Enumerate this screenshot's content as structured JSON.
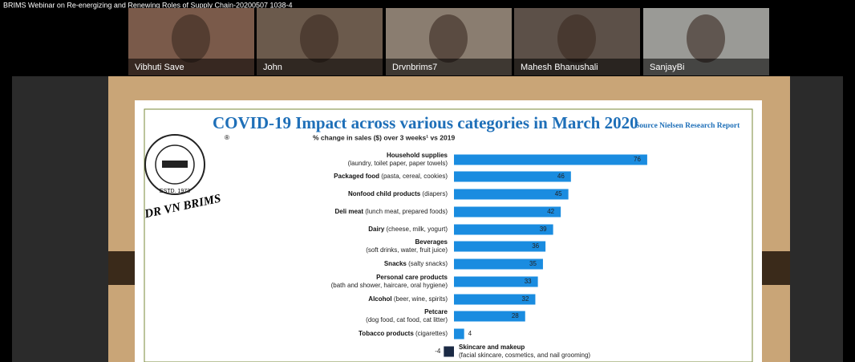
{
  "window_title": "BRIMS Webinar on Re-energizing and Renewing Roles of Supply Chain-20200507 1038-4",
  "participants": [
    "Vibhuti Save",
    "John",
    "Drvnbrims7",
    "Mahesh Bhanushali",
    "SanjayBi"
  ],
  "logo": {
    "name": "DR VN BRIMS",
    "estd": "ESTD. 1973"
  },
  "chart_data": {
    "type": "bar",
    "orientation": "horizontal",
    "title": "COVID-19 Impact across various categories in March 2020",
    "source": "Source Nielsen Research Report",
    "subtitle": "% change in sales ($) over 3 weeks¹ vs 2019",
    "categories": [
      {
        "name": "Household supplies",
        "detail": "(laundry, toilet paper, paper towels)"
      },
      {
        "name": "Packaged food",
        "detail": "(pasta, cereal, cookies)"
      },
      {
        "name": "Nonfood child products",
        "detail": "(diapers)"
      },
      {
        "name": "Deli meat",
        "detail": "(lunch meat, prepared foods)"
      },
      {
        "name": "Dairy",
        "detail": "(cheese, milk, yogurt)"
      },
      {
        "name": "Beverages",
        "detail": "(soft drinks, water, fruit juice)"
      },
      {
        "name": "Snacks",
        "detail": "(salty snacks)"
      },
      {
        "name": "Personal care products",
        "detail": "(bath and shower, haircare, oral hygiene)"
      },
      {
        "name": "Alcohol",
        "detail": "(beer, wine, spirits)"
      },
      {
        "name": "Petcare",
        "detail": "(dog food, cat food, cat litter)"
      },
      {
        "name": "Tobacco products",
        "detail": "(cigarettes)"
      },
      {
        "name": "Skincare and makeup",
        "detail": "(facial skincare, cosmetics, and nail grooming)"
      }
    ],
    "values": [
      76,
      46,
      45,
      42,
      39,
      36,
      35,
      33,
      32,
      28,
      4,
      -4
    ],
    "color": "#1a8ce0",
    "negative_color": "#1b2a45"
  }
}
